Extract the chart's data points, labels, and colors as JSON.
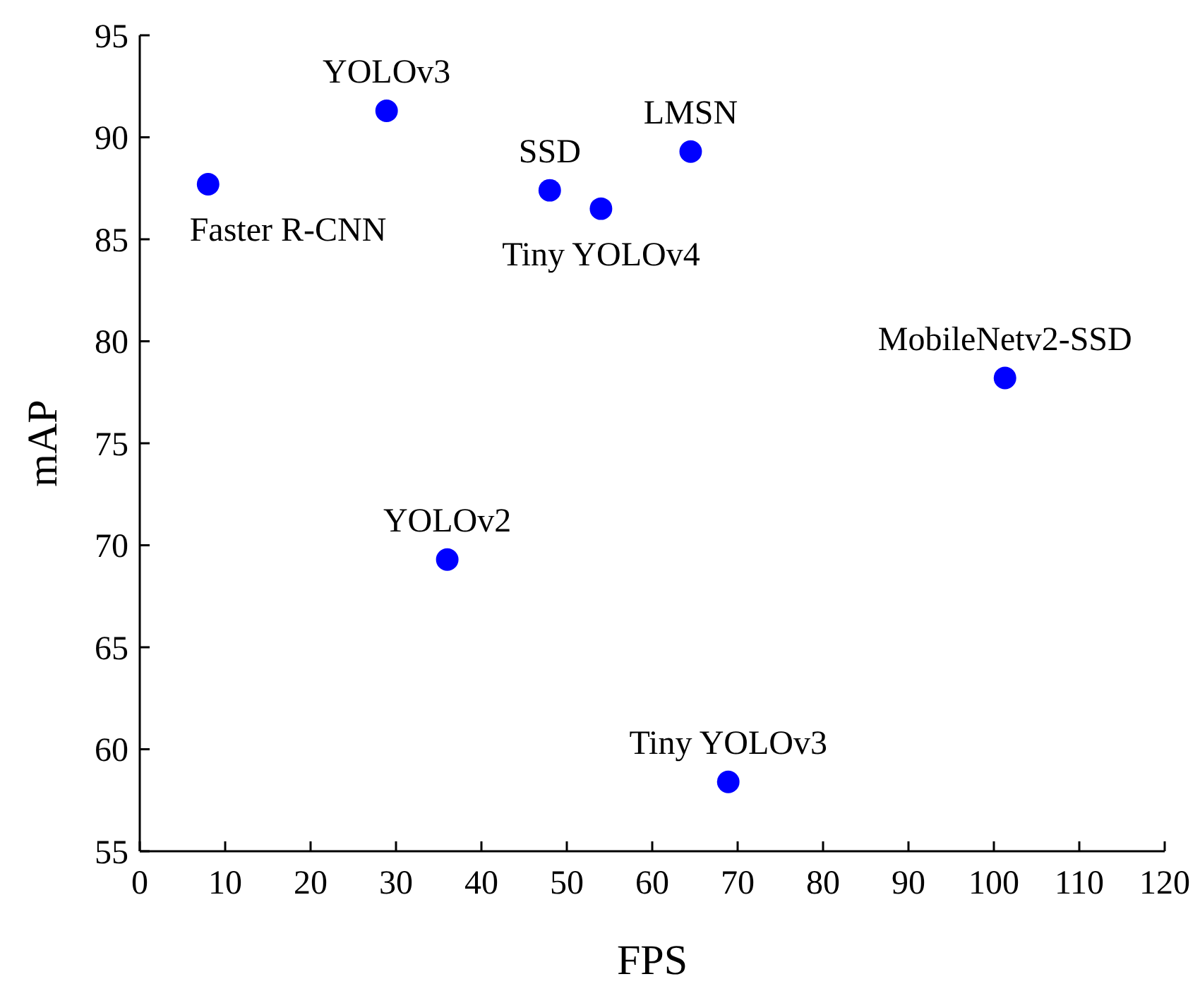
{
  "chart_data": {
    "type": "scatter",
    "xlabel": "FPS",
    "ylabel": "mAP",
    "x": [
      8.0,
      28.9,
      48.0,
      54.0,
      64.5,
      101.3,
      36.0,
      68.9
    ],
    "series": [
      {
        "color": "#0000ff",
        "values": [
          87.7,
          91.3,
          87.4,
          86.5,
          89.3,
          78.2,
          69.3,
          58.4
        ]
      }
    ],
    "xlim": [
      0,
      120
    ],
    "xticks": [
      0,
      10,
      20,
      30,
      40,
      50,
      60,
      70,
      80,
      90,
      100,
      110,
      120
    ],
    "ylim": [
      55,
      95
    ],
    "yticks": [
      55,
      60,
      65,
      70,
      75,
      80,
      85,
      90,
      95
    ],
    "grid": false,
    "marker": "circle",
    "annotations": [
      {
        "text": "Faster R-CNN",
        "x": 8.0,
        "y": 87.7
      },
      {
        "text": "YOLOv3",
        "x": 28.9,
        "y": 91.3
      },
      {
        "text": "SSD",
        "x": 48.0,
        "y": 87.4
      },
      {
        "text": "Tiny YOLOv4",
        "x": 54.0,
        "y": 86.5
      },
      {
        "text": "LMSN",
        "x": 64.5,
        "y": 89.3
      },
      {
        "text": "MobileNetv2-SSD",
        "x": 101.3,
        "y": 78.2
      },
      {
        "text": "YOLOv2",
        "x": 36.0,
        "y": 69.3
      },
      {
        "text": "Tiny YOLOv3",
        "x": 68.9,
        "y": 58.4
      }
    ]
  }
}
